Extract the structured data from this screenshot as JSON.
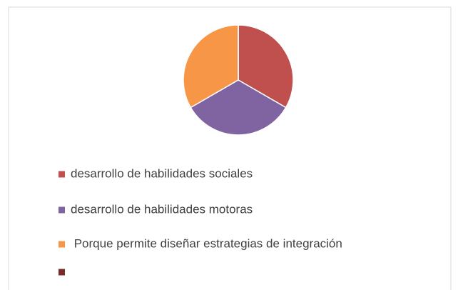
{
  "chart_data": {
    "type": "pie",
    "categories": [
      "desarrollo de habilidades sociales",
      "desarrollo de habilidades motoras",
      " Porque permite diseñar estrategias de integración",
      null
    ],
    "values": [
      1,
      1,
      1,
      0
    ],
    "colors": [
      "#c0504d",
      "#8064a2",
      "#f79646",
      "#772c2a"
    ],
    "legend": "bottom"
  }
}
